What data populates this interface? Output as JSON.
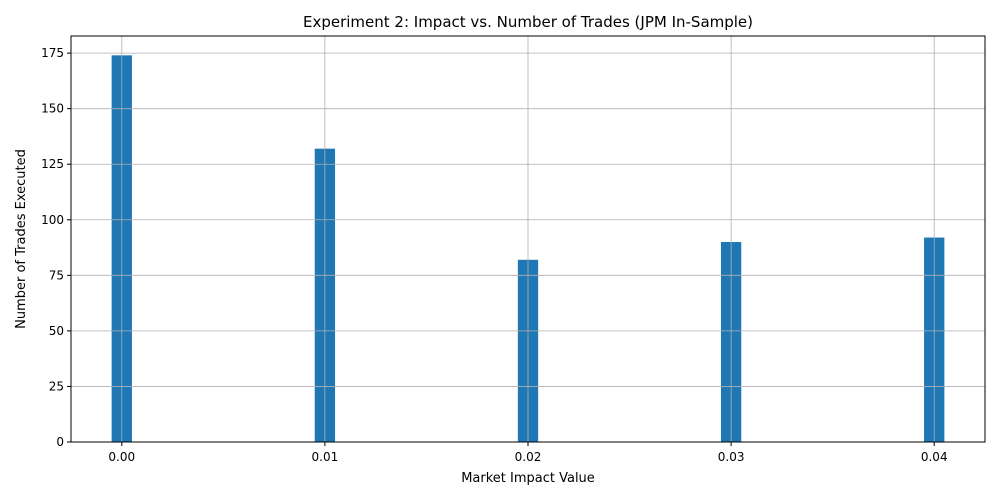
{
  "chart_data": {
    "type": "bar",
    "title": "Experiment 2: Impact vs. Number of Trades (JPM In-Sample)",
    "xlabel": "Market Impact Value",
    "ylabel": "Number of Trades Executed",
    "x": [
      0.0,
      0.01,
      0.02,
      0.03,
      0.04
    ],
    "values": [
      174,
      132,
      82,
      90,
      92
    ],
    "x_ticks": [
      "0.00",
      "0.01",
      "0.02",
      "0.03",
      "0.04"
    ],
    "y_ticks": [
      "0",
      "25",
      "50",
      "75",
      "100",
      "125",
      "150",
      "175"
    ],
    "xlim": [
      -0.0025,
      0.0425
    ],
    "ylim": [
      0,
      182.7
    ],
    "bar_width": 0.001,
    "bar_color": "#1f77b4",
    "grid": true
  }
}
